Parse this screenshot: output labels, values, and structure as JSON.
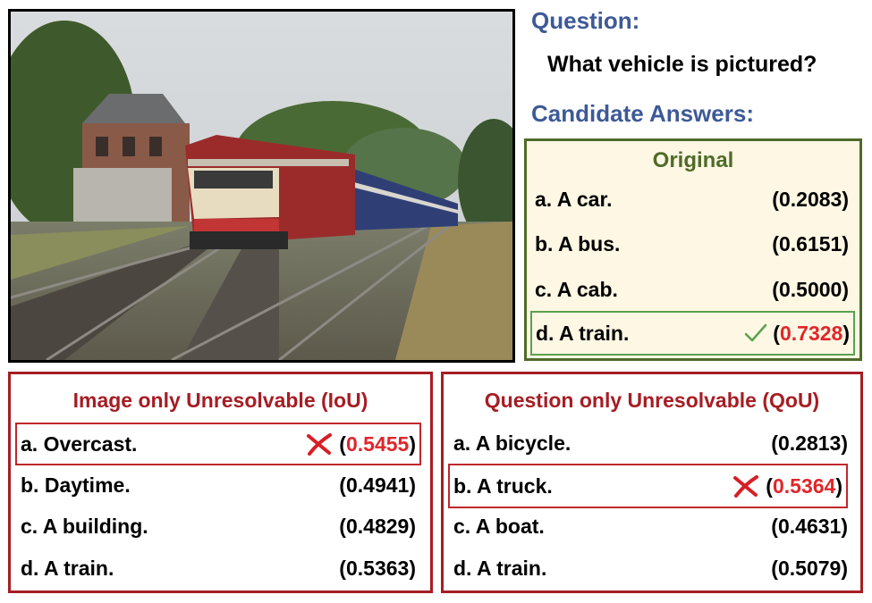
{
  "image": {
    "description_icon": "train-photo"
  },
  "question": {
    "heading": "Question:",
    "text": "What vehicle is pictured?"
  },
  "candidates": {
    "heading": "Candidate Answers:"
  },
  "original": {
    "title": "Original",
    "answers": [
      {
        "label": "a. A car.",
        "score": "0.2083",
        "highlight": false
      },
      {
        "label": "b. A bus.",
        "score": "0.6151",
        "highlight": false
      },
      {
        "label": "c. A cab.",
        "score": "0.5000",
        "highlight": false
      },
      {
        "label": "d. A train.",
        "score": "0.7328",
        "highlight": true,
        "mark": "check-icon"
      }
    ]
  },
  "iou": {
    "title": "Image only Unresolvable (IoU)",
    "answers": [
      {
        "label": "a. Overcast.",
        "score": "0.5455",
        "highlight": true,
        "mark": "cross-icon"
      },
      {
        "label": "b. Daytime.",
        "score": "0.4941",
        "highlight": false
      },
      {
        "label": "c. A building.",
        "score": "0.4829",
        "highlight": false
      },
      {
        "label": "d. A train.",
        "score": "0.5363",
        "highlight": false
      }
    ]
  },
  "qou": {
    "title": "Question only Unresolvable (QoU)",
    "answers": [
      {
        "label": "a. A bicycle.",
        "score": "0.2813",
        "highlight": false
      },
      {
        "label": "b. A truck.",
        "score": "0.5364",
        "highlight": true,
        "mark": "cross-icon"
      },
      {
        "label": "c. A boat.",
        "score": "0.4631",
        "highlight": false
      },
      {
        "label": "d. A train.",
        "score": "0.5079",
        "highlight": false
      }
    ]
  },
  "colors": {
    "heading_blue": "#3d5a96",
    "original_green": "#4f6b2a",
    "panel_red": "#a61d24",
    "score_red": "#e0262a",
    "check_green": "#5aa150"
  }
}
